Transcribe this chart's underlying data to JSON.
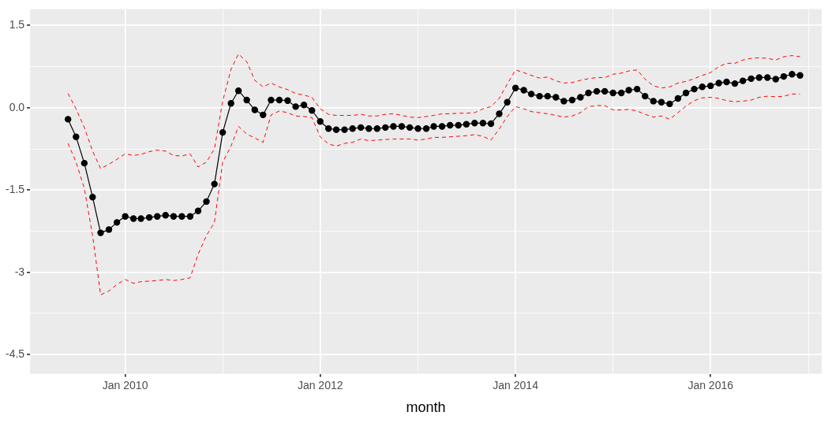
{
  "chart_data": {
    "type": "line",
    "xlabel": "month",
    "x": [
      "2009-06",
      "2009-07",
      "2009-08",
      "2009-09",
      "2009-10",
      "2009-11",
      "2009-12",
      "2010-01",
      "2010-02",
      "2010-03",
      "2010-04",
      "2010-05",
      "2010-06",
      "2010-07",
      "2010-08",
      "2010-09",
      "2010-10",
      "2010-11",
      "2010-12",
      "2011-01",
      "2011-02",
      "2011-03",
      "2011-04",
      "2011-05",
      "2011-06",
      "2011-07",
      "2011-08",
      "2011-09",
      "2011-10",
      "2011-11",
      "2011-12",
      "2012-01",
      "2012-02",
      "2012-03",
      "2012-04",
      "2012-05",
      "2012-06",
      "2012-07",
      "2012-08",
      "2012-09",
      "2012-10",
      "2012-11",
      "2012-12",
      "2013-01",
      "2013-02",
      "2013-03",
      "2013-04",
      "2013-05",
      "2013-06",
      "2013-07",
      "2013-08",
      "2013-09",
      "2013-10",
      "2013-11",
      "2013-12",
      "2014-01",
      "2014-02",
      "2014-03",
      "2014-04",
      "2014-05",
      "2014-06",
      "2014-07",
      "2014-08",
      "2014-09",
      "2014-10",
      "2014-11",
      "2014-12",
      "2015-01",
      "2015-02",
      "2015-03",
      "2015-04",
      "2015-05",
      "2015-06",
      "2015-07",
      "2015-08",
      "2015-09",
      "2015-10",
      "2015-11",
      "2015-12",
      "2016-01",
      "2016-02",
      "2016-03",
      "2016-04",
      "2016-05",
      "2016-06",
      "2016-07",
      "2016-08",
      "2016-09",
      "2016-10",
      "2016-11",
      "2016-12"
    ],
    "series": [
      {
        "color": "#000000",
        "marker": "circle",
        "line_style": "solid",
        "values": [
          -0.21,
          -0.53,
          -1.01,
          -1.63,
          -2.28,
          -2.22,
          -2.09,
          -1.98,
          -2.02,
          -2.02,
          -2.0,
          -1.98,
          -1.96,
          -1.98,
          -1.98,
          -1.98,
          -1.88,
          -1.71,
          -1.39,
          -0.45,
          0.08,
          0.31,
          0.14,
          -0.04,
          -0.13,
          0.14,
          0.14,
          0.13,
          0.02,
          0.05,
          -0.05,
          -0.25,
          -0.38,
          -0.4,
          -0.4,
          -0.38,
          -0.36,
          -0.38,
          -0.38,
          -0.36,
          -0.34,
          -0.34,
          -0.36,
          -0.38,
          -0.38,
          -0.34,
          -0.34,
          -0.32,
          -0.32,
          -0.3,
          -0.28,
          -0.28,
          -0.29,
          -0.11,
          0.1,
          0.36,
          0.32,
          0.25,
          0.21,
          0.21,
          0.19,
          0.12,
          0.14,
          0.19,
          0.27,
          0.3,
          0.3,
          0.27,
          0.27,
          0.32,
          0.34,
          0.21,
          0.12,
          0.1,
          0.07,
          0.17,
          0.27,
          0.34,
          0.38,
          0.4,
          0.45,
          0.47,
          0.44,
          0.49,
          0.53,
          0.55,
          0.55,
          0.52,
          0.57,
          0.61,
          0.59
        ]
      },
      {
        "color": "#ff0000",
        "marker": "none",
        "line_style": "dashed",
        "values": [
          0.26,
          -0.02,
          -0.36,
          -0.79,
          -1.11,
          -1.03,
          -0.94,
          -0.84,
          -0.87,
          -0.85,
          -0.8,
          -0.77,
          -0.79,
          -0.87,
          -0.88,
          -0.84,
          -1.08,
          -0.99,
          -0.75,
          0.12,
          0.7,
          0.98,
          0.84,
          0.5,
          0.38,
          0.45,
          0.38,
          0.33,
          0.26,
          0.23,
          0.19,
          -0.02,
          -0.12,
          -0.14,
          -0.14,
          -0.14,
          -0.12,
          -0.15,
          -0.15,
          -0.12,
          -0.11,
          -0.14,
          -0.17,
          -0.18,
          -0.16,
          -0.14,
          -0.11,
          -0.11,
          -0.1,
          -0.1,
          -0.09,
          -0.02,
          0.02,
          0.17,
          0.43,
          0.69,
          0.64,
          0.59,
          0.54,
          0.56,
          0.49,
          0.45,
          0.46,
          0.5,
          0.53,
          0.55,
          0.55,
          0.61,
          0.63,
          0.67,
          0.69,
          0.52,
          0.4,
          0.36,
          0.38,
          0.45,
          0.48,
          0.53,
          0.59,
          0.64,
          0.75,
          0.81,
          0.81,
          0.87,
          0.9,
          0.91,
          0.9,
          0.87,
          0.93,
          0.95,
          0.93
        ]
      },
      {
        "color": "#ff0000",
        "marker": "none",
        "line_style": "dashed",
        "values": [
          -0.65,
          -0.99,
          -1.47,
          -2.33,
          -3.41,
          -3.34,
          -3.22,
          -3.13,
          -3.2,
          -3.17,
          -3.16,
          -3.15,
          -3.13,
          -3.15,
          -3.13,
          -3.1,
          -2.67,
          -2.33,
          -2.09,
          -0.99,
          -0.7,
          -0.34,
          -0.48,
          -0.55,
          -0.63,
          -0.13,
          -0.06,
          -0.09,
          -0.15,
          -0.16,
          -0.18,
          -0.53,
          -0.66,
          -0.7,
          -0.65,
          -0.63,
          -0.57,
          -0.6,
          -0.59,
          -0.58,
          -0.57,
          -0.57,
          -0.57,
          -0.59,
          -0.57,
          -0.54,
          -0.54,
          -0.53,
          -0.52,
          -0.51,
          -0.49,
          -0.52,
          -0.59,
          -0.39,
          -0.16,
          0.02,
          -0.02,
          -0.07,
          -0.09,
          -0.11,
          -0.14,
          -0.17,
          -0.15,
          -0.09,
          0.02,
          0.04,
          0.04,
          -0.04,
          -0.04,
          -0.03,
          -0.06,
          -0.12,
          -0.17,
          -0.15,
          -0.21,
          -0.09,
          0.03,
          0.13,
          0.18,
          0.19,
          0.17,
          0.13,
          0.11,
          0.12,
          0.14,
          0.19,
          0.21,
          0.2,
          0.21,
          0.25,
          0.25
        ]
      }
    ],
    "xlim": [
      "2009-01-10",
      "2017-02-20"
    ],
    "xticks": [
      {
        "value": "2010-01",
        "label": "Jan 2010"
      },
      {
        "value": "2011-01",
        "label": null
      },
      {
        "value": "2012-01",
        "label": "Jan 2012"
      },
      {
        "value": "2013-01",
        "label": null
      },
      {
        "value": "2014-01",
        "label": "Jan 2014"
      },
      {
        "value": "2015-01",
        "label": null
      },
      {
        "value": "2016-01",
        "label": "Jan 2016"
      },
      {
        "value": "2017-01",
        "label": null
      }
    ],
    "ylim": [
      -4.85,
      1.8
    ],
    "yticks": [
      {
        "value": -4.5,
        "label": "-4.5"
      },
      {
        "value": -3.75,
        "label": null
      },
      -3,
      {
        "value": -2.25,
        "label": null
      },
      {
        "value": -1.5,
        "label": "-1.5"
      },
      {
        "value": -0.75,
        "label": null
      },
      {
        "value": 0,
        "label": "0.0"
      },
      {
        "value": 0.75,
        "label": null
      },
      {
        "value": 1.5,
        "label": "1.5"
      }
    ],
    "grid": true,
    "legend": false
  }
}
